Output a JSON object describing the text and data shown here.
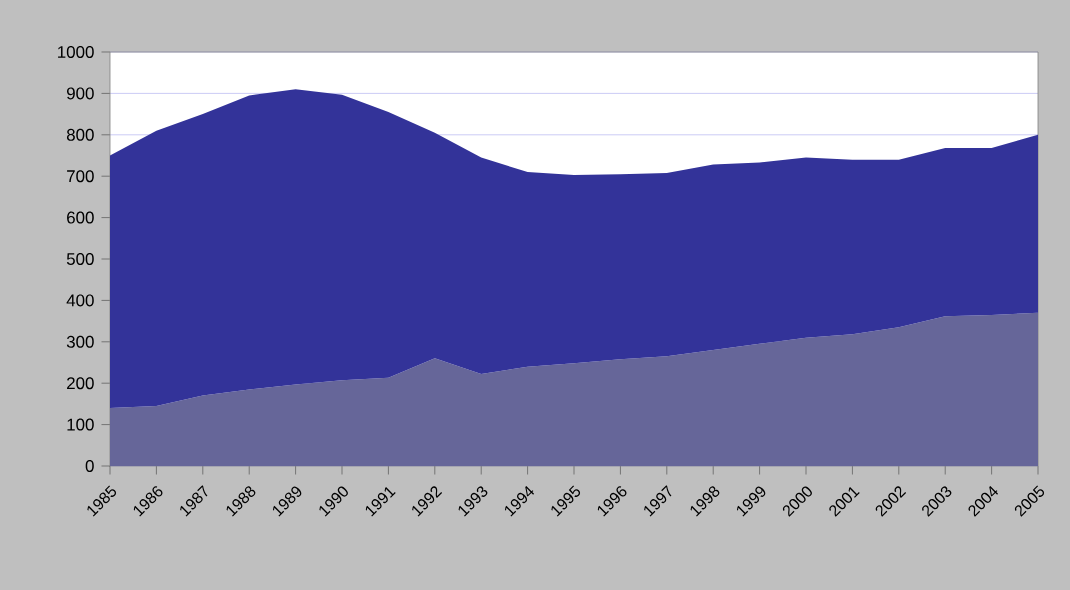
{
  "chart_data": {
    "type": "area",
    "categories": [
      "1985",
      "1986",
      "1987",
      "1988",
      "1989",
      "1990",
      "1991",
      "1992",
      "1993",
      "1994",
      "1995",
      "1996",
      "1997",
      "1998",
      "1999",
      "2000",
      "2001",
      "2002",
      "2003",
      "2004",
      "2005"
    ],
    "stacked": true,
    "series": [
      {
        "color": "#666699",
        "values": [
          140,
          145,
          170,
          185,
          197,
          207,
          213,
          260,
          222,
          240,
          248,
          258,
          265,
          280,
          295,
          310,
          318,
          335,
          362,
          365,
          370
        ]
      },
      {
        "color": "#333399",
        "values": [
          610,
          665,
          680,
          710,
          713,
          690,
          642,
          545,
          523,
          470,
          455,
          447,
          443,
          448,
          438,
          435,
          422,
          405,
          406,
          403,
          430
        ]
      }
    ],
    "ylim": [
      0,
      1000
    ],
    "yticks": [
      0,
      100,
      200,
      300,
      400,
      500,
      600,
      700,
      800,
      900,
      1000
    ],
    "grid": "y"
  }
}
